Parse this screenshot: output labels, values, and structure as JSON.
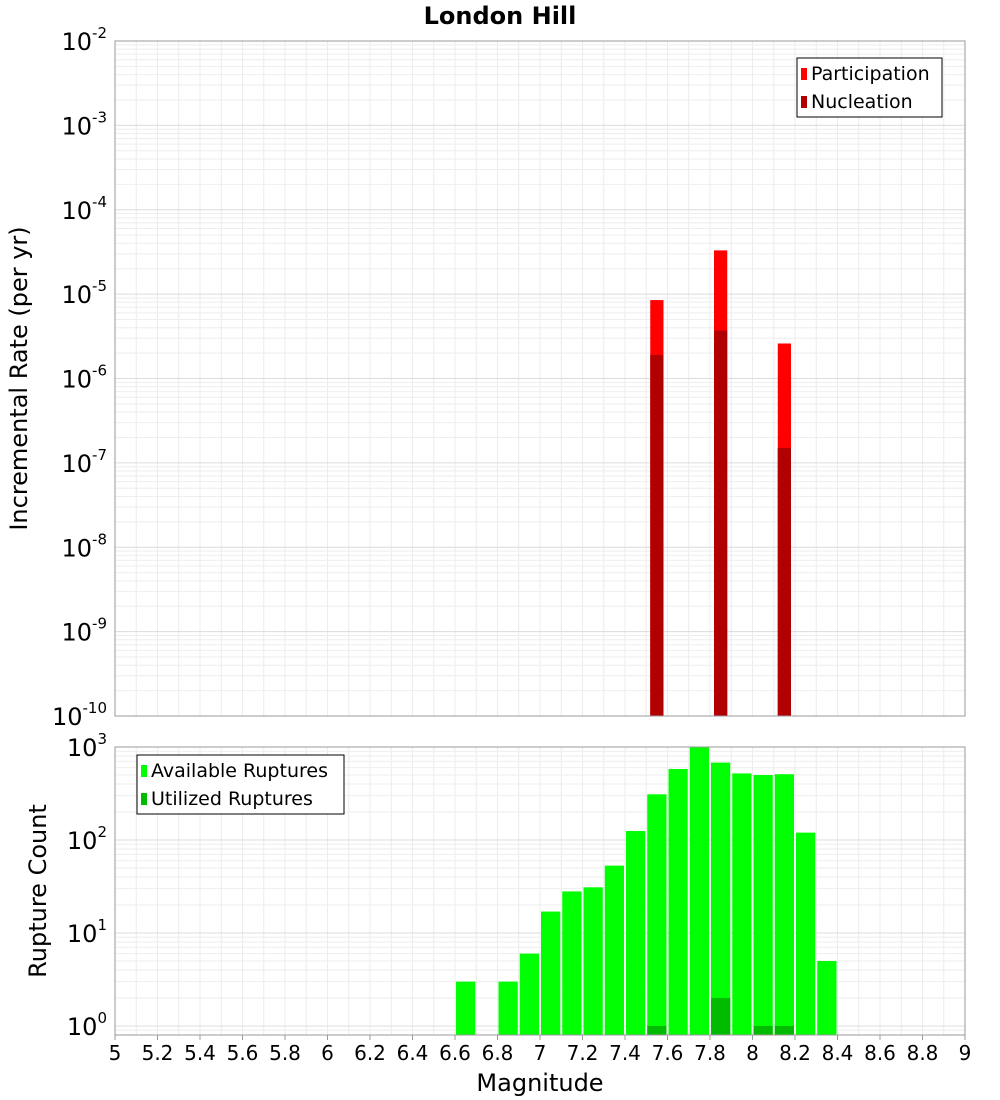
{
  "chart_data": [
    {
      "type": "bar",
      "title": "London Hill",
      "ylabel": "Incremental Rate (per yr)",
      "xlabel": "",
      "yscale": "log",
      "ylim": [
        1e-10,
        0.01
      ],
      "xlim": [
        5,
        9
      ],
      "bin_width": 0.1,
      "x": [
        7.55,
        7.85,
        8.15
      ],
      "series": [
        {
          "name": "Participation",
          "color": "#ff0000",
          "values": [
            8.5e-06,
            3.3e-05,
            2.6e-06
          ]
        },
        {
          "name": "Nucleation",
          "color": "#b00000",
          "values": [
            1.9e-06,
            3.7e-06,
            1.5e-07
          ]
        }
      ],
      "yticks": [
        {
          "base": "10",
          "exp": "-10"
        },
        {
          "base": "10",
          "exp": "-9"
        },
        {
          "base": "10",
          "exp": "-8"
        },
        {
          "base": "10",
          "exp": "-7"
        },
        {
          "base": "10",
          "exp": "-6"
        },
        {
          "base": "10",
          "exp": "-5"
        },
        {
          "base": "10",
          "exp": "-4"
        },
        {
          "base": "10",
          "exp": "-3"
        },
        {
          "base": "10",
          "exp": "-2"
        }
      ],
      "legend_position": "top-right",
      "grid": true
    },
    {
      "type": "bar",
      "title": "",
      "ylabel": "Rupture Count",
      "xlabel": "Magnitude",
      "yscale": "log",
      "ylim": [
        0.8,
        1000
      ],
      "xlim": [
        5,
        9
      ],
      "bin_width": 0.1,
      "x": [
        6.65,
        6.75,
        6.85,
        6.95,
        7.05,
        7.15,
        7.25,
        7.35,
        7.45,
        7.55,
        7.65,
        7.75,
        7.85,
        7.95,
        8.05,
        8.15,
        8.25,
        8.35
      ],
      "series": [
        {
          "name": "Available Ruptures",
          "color": "#00ff00",
          "values": [
            3,
            0,
            3,
            6,
            17,
            28,
            31,
            53,
            125,
            310,
            580,
            990,
            680,
            520,
            500,
            510,
            120,
            5
          ]
        },
        {
          "name": "Utilized Ruptures",
          "color": "#00bb00",
          "values": [
            0,
            0,
            0,
            0,
            0,
            0,
            0,
            0,
            0,
            1,
            0,
            0,
            2,
            0,
            1,
            1,
            0,
            0
          ]
        }
      ],
      "yticks": [
        {
          "base": "10",
          "exp": "0"
        },
        {
          "base": "10",
          "exp": "1"
        },
        {
          "base": "10",
          "exp": "2"
        },
        {
          "base": "10",
          "exp": "3"
        }
      ],
      "xticks": [
        "5",
        "5.2",
        "5.4",
        "5.6",
        "5.8",
        "6",
        "6.2",
        "6.4",
        "6.6",
        "6.8",
        "7",
        "7.2",
        "7.4",
        "7.6",
        "7.8",
        "8",
        "8.2",
        "8.4",
        "8.6",
        "8.8",
        "9"
      ],
      "legend_position": "top-left",
      "grid": true
    }
  ]
}
